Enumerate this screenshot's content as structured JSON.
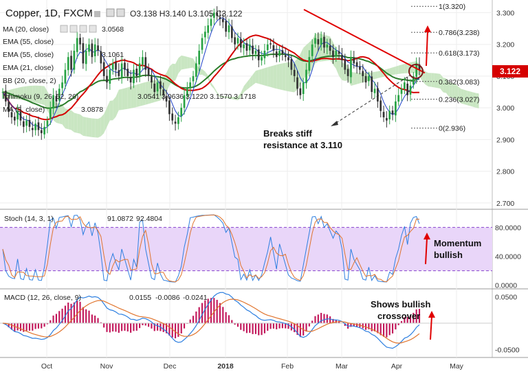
{
  "header": {
    "symbol": "Copper, 1D, FXCM",
    "ohlc": "O3.138  H3.140  L3.105  C3.122"
  },
  "legend": [
    {
      "label": "MA (20, close)",
      "value": "3.0568",
      "color": "#d50000"
    },
    {
      "label": "EMA (55, close)",
      "value": "",
      "color": "#999999"
    },
    {
      "label": "EMA (55, close)",
      "value": "3.1061",
      "color": "#333333"
    },
    {
      "label": "EMA (21, close)",
      "value": "",
      "color": "#999999"
    },
    {
      "label": "BB (20, close, 2)",
      "value": "",
      "color": "#999999"
    },
    {
      "label": "Ichimoku (9, 26, 52, 26)",
      "value": "3.0541  3.0636  3.1220  3.1570  3.1718",
      "color": "#333333"
    },
    {
      "label": "MA (5, close)",
      "value": "3.0878",
      "color": "#1e40c8"
    }
  ],
  "colors": {
    "bull": "#27a243",
    "bear": "#333333",
    "ma20": "#d50000",
    "ema55": "#2a7d2a",
    "ma5": "#1e40c8",
    "cloud_bull": "#c9e6c2",
    "cloud_bear": "#f7d0d0",
    "stoch_k": "#2d7fe0",
    "stoch_d": "#e0742d",
    "stoch_band": "#e9d6f9",
    "macd_line": "#2d7fe0",
    "signal_line": "#e0742d",
    "hist": "#c2185b",
    "trend": "#e00000",
    "price_tag": "#d50000"
  },
  "price_axis": {
    "ticks": [
      "3.300",
      "3.200",
      "3.100",
      "3.000",
      "2.900",
      "2.800",
      "2.700"
    ],
    "current": "3.122"
  },
  "stoch_axis": {
    "ticks": [
      "80.0000",
      "40.0000",
      "0.0000"
    ]
  },
  "macd_axis": {
    "ticks": [
      "0.0500",
      "-0.0500"
    ]
  },
  "time_axis": {
    "labels": [
      "Oct",
      "Nov",
      "Dec",
      "2018",
      "Feb",
      "Mar",
      "Apr",
      "May"
    ]
  },
  "stoch_legend": {
    "label": "Stoch (14, 3, 1)",
    "k": "91.0872",
    "d": "92.4804"
  },
  "macd_legend": {
    "label": "MACD (12, 26, close, 9)",
    "v1": "0.0155",
    "v2": "-0.0086",
    "v3": "-0.0241"
  },
  "fib_levels": [
    {
      "label": "1(3.320)",
      "price": 3.32
    },
    {
      "label": "0.786(3.238)",
      "price": 3.238
    },
    {
      "label": "0.618(3.173)",
      "price": 3.173
    },
    {
      "label": "0.382(3.083)",
      "price": 3.083
    },
    {
      "label": "0.236(3.027)",
      "price": 3.027
    },
    {
      "label": "0(2.936)",
      "price": 2.936
    }
  ],
  "annotations": {
    "breaks_line1": "Breaks stiff",
    "breaks_line2": "resistance at 3.110",
    "momentum_line1": "Momentum",
    "momentum_line2": "bullish",
    "macd_line1": "Shows bullish",
    "macd_line2": "crossover"
  },
  "chart_data": {
    "type": "candlestick",
    "title": "Copper, 1D, FXCM",
    "price_range": [
      2.68,
      3.34
    ],
    "closes": [
      3.05,
      3.02,
      2.99,
      2.97,
      2.96,
      2.99,
      2.96,
      2.94,
      2.96,
      2.94,
      2.93,
      2.95,
      2.93,
      2.92,
      2.94,
      2.96,
      3.0,
      3.04,
      3.02,
      3.06,
      3.08,
      3.12,
      3.16,
      3.12,
      3.18,
      3.22,
      3.2,
      3.14,
      3.18,
      3.2,
      3.16,
      3.2,
      3.18,
      3.14,
      3.1,
      3.08,
      3.12,
      3.14,
      3.12,
      3.1,
      3.14,
      3.12,
      3.1,
      3.08,
      3.12,
      3.1,
      3.14,
      3.16,
      3.12,
      3.1,
      3.08,
      3.05,
      3.08,
      3.06,
      3.04,
      3.02,
      2.98,
      2.96,
      2.95,
      2.97,
      3.0,
      3.04,
      3.06,
      3.08,
      3.1,
      3.14,
      3.18,
      3.22,
      3.24,
      3.26,
      3.28,
      3.3,
      3.29,
      3.28,
      3.27,
      3.24,
      3.26,
      3.22,
      3.2,
      3.22,
      3.19,
      3.2,
      3.18,
      3.2,
      3.17,
      3.18,
      3.15,
      3.16,
      3.18,
      3.2,
      3.2,
      3.18,
      3.16,
      3.18,
      3.17,
      3.16,
      3.15,
      3.12,
      3.1,
      3.06,
      3.04,
      3.08,
      3.12,
      3.16,
      3.2,
      3.22,
      3.2,
      3.22,
      3.19,
      3.2,
      3.18,
      3.16,
      3.18,
      3.17,
      3.15,
      3.12,
      3.1,
      3.16,
      3.14,
      3.13,
      3.12,
      3.1,
      3.08,
      3.1,
      3.05,
      3.06,
      3.02,
      2.99,
      2.97,
      2.96,
      2.99,
      2.98,
      3.02,
      3.04,
      3.06,
      3.08,
      3.04,
      3.07,
      3.1,
      3.14,
      3.12
    ],
    "stoch_range": [
      -5,
      105
    ],
    "macd_range": [
      -0.065,
      0.065
    ]
  }
}
